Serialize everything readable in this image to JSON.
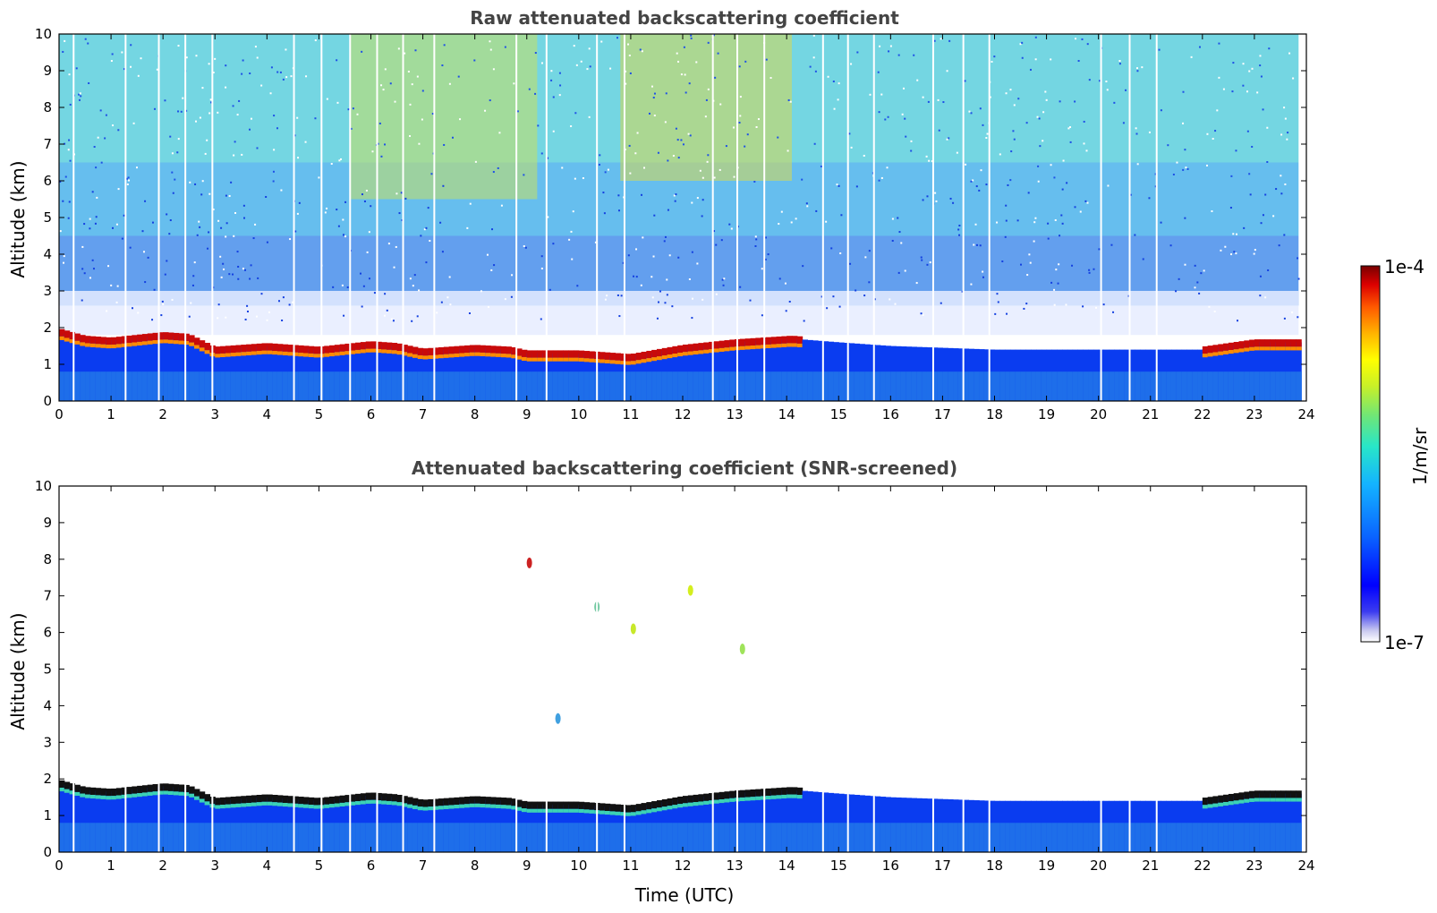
{
  "chart_data": [
    {
      "type": "heatmap",
      "title": "Raw attenuated backscattering coefficient",
      "xlabel": "",
      "ylabel": "Altitude (km)",
      "xlim": [
        0,
        24
      ],
      "ylim": [
        0,
        10
      ],
      "x_ticks": [
        "0",
        "1",
        "2",
        "3",
        "4",
        "5",
        "6",
        "7",
        "8",
        "9",
        "10",
        "11",
        "12",
        "13",
        "14",
        "15",
        "16",
        "17",
        "18",
        "19",
        "20",
        "21",
        "22",
        "23",
        "24"
      ],
      "y_ticks": [
        "0",
        "1",
        "2",
        "3",
        "4",
        "5",
        "6",
        "7",
        "8",
        "9",
        "10"
      ],
      "data_extent_hours": [
        0,
        23.85
      ],
      "layer_top_km": [
        [
          0,
          1.9
        ],
        [
          0.5,
          1.7
        ],
        [
          1,
          1.65
        ],
        [
          2,
          1.8
        ],
        [
          2.5,
          1.75
        ],
        [
          3,
          1.4
        ],
        [
          4,
          1.5
        ],
        [
          5,
          1.4
        ],
        [
          6,
          1.55
        ],
        [
          6.5,
          1.5
        ],
        [
          7,
          1.35
        ],
        [
          8,
          1.45
        ],
        [
          8.7,
          1.4
        ],
        [
          9,
          1.3
        ],
        [
          10,
          1.3
        ],
        [
          11,
          1.2
        ],
        [
          12,
          1.45
        ],
        [
          13,
          1.6
        ],
        [
          14.1,
          1.7
        ],
        [
          15,
          1.6
        ],
        [
          16,
          1.5
        ],
        [
          18,
          1.4
        ],
        [
          20,
          1.4
        ],
        [
          22,
          1.4
        ],
        [
          23,
          1.6
        ],
        [
          23.85,
          1.6
        ]
      ],
      "dropout_hours": [
        0.28,
        1.28,
        1.92,
        2.43,
        2.95,
        4.52,
        5.05,
        5.6,
        6.12,
        6.62,
        7.22,
        8.8,
        9.38,
        10.35,
        10.88,
        12.58,
        13.05,
        13.57,
        14.7,
        15.18,
        15.68,
        16.82,
        17.4,
        17.9,
        20.05,
        20.6,
        21.12
      ],
      "colorbar": {
        "min": "1e-7",
        "max": "1e-4",
        "label": "1/m/sr",
        "scale": "log"
      }
    },
    {
      "type": "heatmap",
      "title": "Attenuated backscattering coefficient (SNR-screened)",
      "xlabel": "Time (UTC)",
      "ylabel": "Altitude (km)",
      "xlim": [
        0,
        24
      ],
      "ylim": [
        0,
        10
      ],
      "x_ticks": [
        "0",
        "1",
        "2",
        "3",
        "4",
        "5",
        "6",
        "7",
        "8",
        "9",
        "10",
        "11",
        "12",
        "13",
        "14",
        "15",
        "16",
        "17",
        "18",
        "19",
        "20",
        "21",
        "22",
        "23",
        "24"
      ],
      "y_ticks": [
        "0",
        "1",
        "2",
        "3",
        "4",
        "5",
        "6",
        "7",
        "8",
        "9",
        "10"
      ],
      "data_extent_hours": [
        0,
        23.85
      ],
      "isolated_features": [
        {
          "time": 12.15,
          "altitude_km": 7.15,
          "color": "#d4ee1e"
        },
        {
          "time": 11.05,
          "altitude_km": 6.1,
          "color": "#c8e82a"
        },
        {
          "time": 13.15,
          "altitude_km": 5.55,
          "color": "#9fe35a"
        },
        {
          "time": 9.05,
          "altitude_km": 7.9,
          "color": "#cc2222"
        },
        {
          "time": 9.6,
          "altitude_km": 3.65,
          "color": "#40a0e0"
        },
        {
          "time": 10.35,
          "altitude_km": 6.7,
          "color": "#70c8a0"
        }
      ]
    }
  ]
}
